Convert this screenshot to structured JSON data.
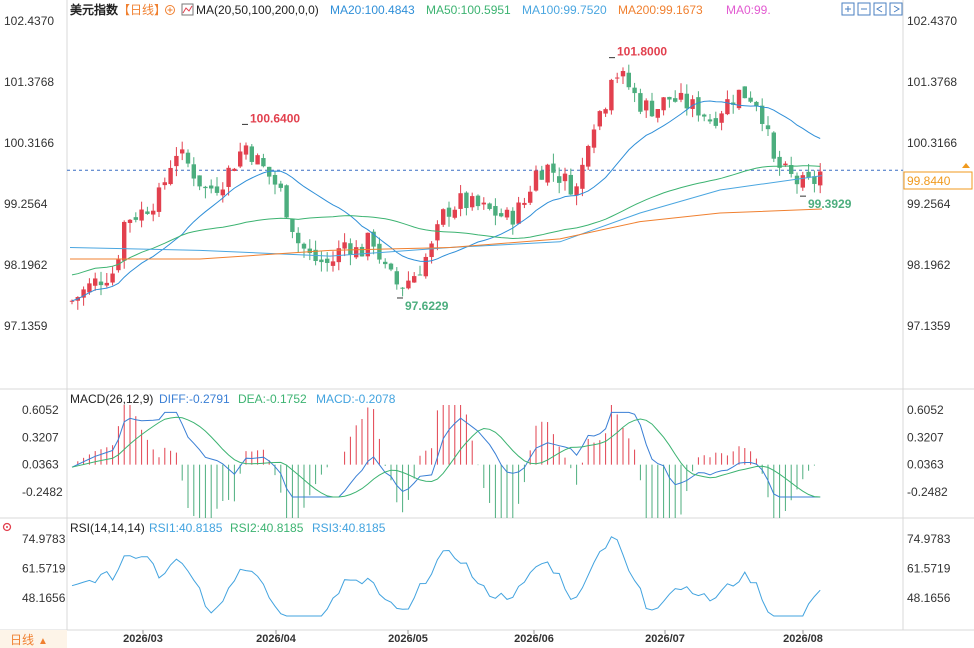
{
  "instrument": "美元指数",
  "period_tag": "【日线】",
  "bottom_period": "日线",
  "bottom_arrow": "▲",
  "icons": [
    "zoom-in-icon",
    "zoom-out-icon",
    "move-left-icon",
    "move-right-icon",
    "settings-icon",
    "add-circle-icon",
    "ma-toggle-icon",
    "rsi-settings-icon"
  ],
  "colors": {
    "up": "#e2404e",
    "down": "#4cae7e",
    "ma20": "#2f8fd8",
    "ma50": "#3cb371",
    "ma100": "#4aa6e0",
    "ma200": "#f08030",
    "ma0": "#e25bd1",
    "diff": "#3a7fd5",
    "dea": "#3cb371",
    "rsi": "#42a3df",
    "price_tag": "#f09a1e"
  },
  "legend": {
    "ma_label": "MA(20,50,100,200,0,0)",
    "ma20": "MA20:100.4843",
    "ma50": "MA50:100.5951",
    "ma100": "MA100:99.7520",
    "ma200": "MA200:99.1673",
    "ma0": "MA0:99."
  },
  "macd_legend": {
    "label": "MACD(26,12,9)",
    "diff": "DIFF:-0.2791",
    "dea": "DEA:-0.1752",
    "macd": "MACD:-0.2078"
  },
  "rsi_legend": {
    "label": "RSI(14,14,14)",
    "rsi1": "RSI1:40.8185",
    "rsi2": "RSI2:40.8185",
    "rsi3": "RSI3:40.8185"
  },
  "current_price": "99.8440",
  "chart_data": {
    "type": "candlestick",
    "x_axis": [
      "2026/03",
      "2026/04",
      "2026/05",
      "2026/06",
      "2026/07",
      "2026/08"
    ],
    "price_axis": {
      "ticks": [
        "102.4370",
        "101.3768",
        "100.3166",
        "99.2564",
        "98.1962",
        "97.1359"
      ],
      "min": 97.1359,
      "max": 102.437
    },
    "annotations": [
      {
        "label": "100.6400",
        "value": 100.64,
        "type": "high"
      },
      {
        "label": "97.6229",
        "value": 97.6229,
        "type": "low"
      },
      {
        "label": "101.8000",
        "value": 101.8,
        "type": "high"
      },
      {
        "label": "99.3929",
        "value": 99.3929,
        "type": "low"
      }
    ],
    "last_price": 99.844,
    "series_ma": [
      {
        "name": "MA20",
        "last": 100.4843
      },
      {
        "name": "MA50",
        "last": 100.5951
      },
      {
        "name": "MA100",
        "last": 99.752
      },
      {
        "name": "MA200",
        "last": 99.1673
      }
    ],
    "macd": {
      "ticks": [
        "0.6052",
        "0.3207",
        "0.0363",
        "-0.2482"
      ],
      "min": -0.2482,
      "max": 0.6052,
      "diff_last": -0.2791,
      "dea_last": -0.1752,
      "macd_last": -0.2078
    },
    "rsi": {
      "ticks": [
        "74.9783",
        "61.5719",
        "48.1656"
      ],
      "min": 48.1656,
      "max": 74.9783,
      "rsi1_last": 40.8185
    }
  }
}
